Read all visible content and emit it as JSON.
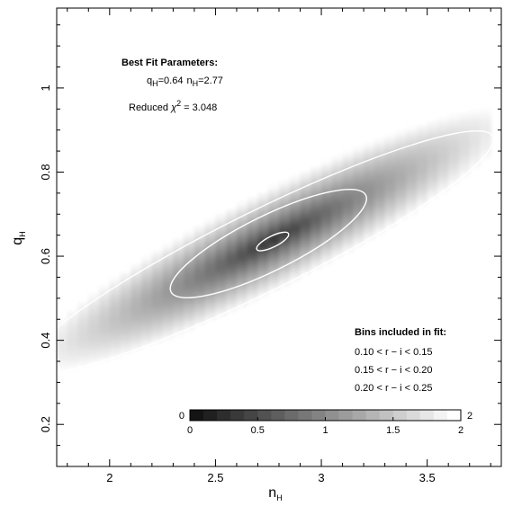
{
  "chart_data": {
    "type": "heatmap",
    "xlabel": {
      "main": "n",
      "sub": "H"
    },
    "ylabel": {
      "main": "q",
      "sub": "H"
    },
    "xlim": [
      1.75,
      3.85
    ],
    "ylim": [
      0.1,
      1.19
    ],
    "x_ticks": [
      2,
      2.5,
      3,
      3.5
    ],
    "x_tick_labels": [
      "2",
      "2.5",
      "3",
      "3.5"
    ],
    "y_ticks": [
      0.2,
      0.4,
      0.6,
      0.8,
      1
    ],
    "y_tick_labels": [
      "0.2",
      "0.4",
      "0.6",
      "0.8",
      "1"
    ],
    "best_fit": {
      "n_H": 2.77,
      "q_H": 0.64
    },
    "reduced_chi2": 3.048,
    "contours": [
      {
        "level": "inner",
        "center": [
          2.77,
          0.635
        ],
        "half_width_n": 0.075,
        "half_width_q": 0.013
      },
      {
        "level": "middle",
        "center": [
          2.75,
          0.63
        ],
        "half_width_n": 0.46,
        "half_width_q": 0.065
      },
      {
        "level": "outer",
        "center": [
          2.71,
          0.61
        ],
        "half_width_n": 1.1,
        "half_width_q": 0.095
      }
    ],
    "colorbar": {
      "range": [
        0,
        2
      ],
      "end_labels": [
        "0",
        "2"
      ],
      "ticks": [
        0,
        0.5,
        1,
        1.5,
        2
      ],
      "tick_labels": [
        "0",
        "0.5",
        "1",
        "1.5",
        "2"
      ]
    },
    "annotations": {
      "title": "Best Fit Parameters:",
      "params_line": {
        "q_main": "q",
        "q_sub": "H",
        "q_val": "=0.64",
        "n_main": "n",
        "n_sub": "H",
        "n_val": "=2.77"
      },
      "chi_line": {
        "prefix": "Reduced ",
        "chi": "χ",
        "sup": "2",
        "suffix": " = 3.048"
      },
      "bins_title": "Bins included in fit:",
      "bins": [
        "0.10 < r − i < 0.15",
        "0.15 < r − i < 0.20",
        "0.20 < r − i < 0.25"
      ]
    },
    "colors": {
      "background": "#ffffff",
      "contour": "#ffffff",
      "darkest": "#141414",
      "frame": "#000000"
    }
  }
}
